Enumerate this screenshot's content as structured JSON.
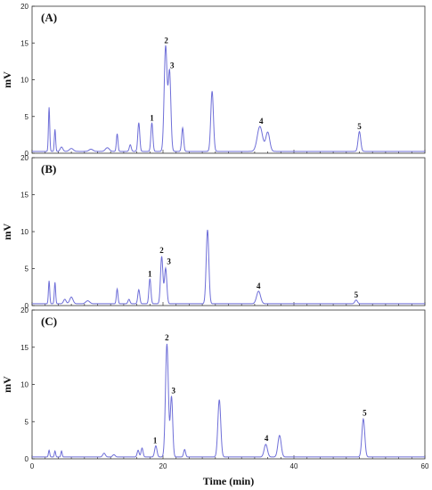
{
  "chart_data": [
    {
      "type": "line",
      "panel_label": "(A)",
      "ylabel": "mV",
      "xlim": [
        0,
        60
      ],
      "ylim": [
        0,
        20
      ],
      "yticks": [
        0,
        5,
        10,
        15,
        20
      ],
      "line_color": "#6f6fd8",
      "peaks": [
        {
          "t": 2.6,
          "h": 6.0,
          "w": 0.1
        },
        {
          "t": 3.5,
          "h": 3.0,
          "w": 0.1
        },
        {
          "t": 4.5,
          "h": 0.6,
          "w": 0.2
        },
        {
          "t": 6.0,
          "h": 0.4,
          "w": 0.3
        },
        {
          "t": 9.0,
          "h": 0.3,
          "w": 0.3
        },
        {
          "t": 11.5,
          "h": 0.5,
          "w": 0.3
        },
        {
          "t": 13.0,
          "h": 2.4,
          "w": 0.12
        },
        {
          "t": 15.0,
          "h": 0.9,
          "w": 0.15
        },
        {
          "t": 16.3,
          "h": 3.9,
          "w": 0.15
        },
        {
          "t": 18.3,
          "h": 3.9,
          "w": 0.15
        },
        {
          "t": 20.4,
          "h": 14.3,
          "w": 0.22
        },
        {
          "t": 21.0,
          "h": 10.8,
          "w": 0.2
        },
        {
          "t": 23.0,
          "h": 3.2,
          "w": 0.15
        },
        {
          "t": 27.5,
          "h": 8.2,
          "w": 0.2
        },
        {
          "t": 34.8,
          "h": 3.4,
          "w": 0.4
        },
        {
          "t": 36.0,
          "h": 2.6,
          "w": 0.3
        },
        {
          "t": 50.0,
          "h": 2.7,
          "w": 0.2
        }
      ],
      "peak_labels": [
        {
          "label": "1",
          "t": 18.3,
          "y": 4.4
        },
        {
          "label": "2",
          "t": 20.5,
          "y": 15.0
        },
        {
          "label": "3",
          "t": 21.4,
          "y": 11.6
        },
        {
          "label": "4",
          "t": 35.0,
          "y": 4.0
        },
        {
          "label": "5",
          "t": 50.0,
          "y": 3.3
        }
      ]
    },
    {
      "type": "line",
      "panel_label": "(B)",
      "ylabel": "mV",
      "xlim": [
        0,
        60
      ],
      "ylim": [
        0,
        20
      ],
      "yticks": [
        0,
        5,
        10,
        15,
        20
      ],
      "line_color": "#6f6fd8",
      "peaks": [
        {
          "t": 2.6,
          "h": 3.1,
          "w": 0.1
        },
        {
          "t": 3.5,
          "h": 2.9,
          "w": 0.1
        },
        {
          "t": 5.0,
          "h": 0.6,
          "w": 0.2
        },
        {
          "t": 6.0,
          "h": 0.9,
          "w": 0.25
        },
        {
          "t": 8.5,
          "h": 0.4,
          "w": 0.3
        },
        {
          "t": 13.0,
          "h": 2.0,
          "w": 0.12
        },
        {
          "t": 14.8,
          "h": 0.6,
          "w": 0.15
        },
        {
          "t": 16.3,
          "h": 1.9,
          "w": 0.15
        },
        {
          "t": 18.0,
          "h": 3.4,
          "w": 0.15
        },
        {
          "t": 19.8,
          "h": 6.4,
          "w": 0.18
        },
        {
          "t": 20.4,
          "h": 4.8,
          "w": 0.18
        },
        {
          "t": 26.8,
          "h": 10.0,
          "w": 0.2
        },
        {
          "t": 34.6,
          "h": 1.7,
          "w": 0.3
        },
        {
          "t": 49.5,
          "h": 0.5,
          "w": 0.2
        }
      ],
      "peak_labels": [
        {
          "label": "1",
          "t": 18.0,
          "y": 3.9
        },
        {
          "label": "2",
          "t": 19.8,
          "y": 7.1
        },
        {
          "label": "3",
          "t": 20.9,
          "y": 5.6
        },
        {
          "label": "4",
          "t": 34.6,
          "y": 2.3
        },
        {
          "label": "5",
          "t": 49.5,
          "y": 1.1
        }
      ]
    },
    {
      "type": "line",
      "panel_label": "(C)",
      "ylabel": "mV",
      "xlabel": "Time (min)",
      "xlim": [
        0,
        60
      ],
      "ylim": [
        0,
        20
      ],
      "yticks": [
        0,
        5,
        10,
        15,
        20
      ],
      "xticks": [
        0,
        20,
        40,
        60
      ],
      "line_color": "#6f6fd8",
      "peaks": [
        {
          "t": 2.6,
          "h": 0.9,
          "w": 0.1
        },
        {
          "t": 3.5,
          "h": 0.8,
          "w": 0.1
        },
        {
          "t": 4.5,
          "h": 0.8,
          "w": 0.1
        },
        {
          "t": 11.0,
          "h": 0.5,
          "w": 0.2
        },
        {
          "t": 12.5,
          "h": 0.3,
          "w": 0.2
        },
        {
          "t": 16.2,
          "h": 0.9,
          "w": 0.15
        },
        {
          "t": 16.8,
          "h": 1.2,
          "w": 0.15
        },
        {
          "t": 18.9,
          "h": 1.5,
          "w": 0.18
        },
        {
          "t": 20.6,
          "h": 15.2,
          "w": 0.22
        },
        {
          "t": 21.3,
          "h": 8.1,
          "w": 0.18
        },
        {
          "t": 23.3,
          "h": 1.0,
          "w": 0.15
        },
        {
          "t": 28.6,
          "h": 7.7,
          "w": 0.22
        },
        {
          "t": 35.7,
          "h": 1.7,
          "w": 0.25
        },
        {
          "t": 37.8,
          "h": 2.9,
          "w": 0.25
        },
        {
          "t": 50.6,
          "h": 5.1,
          "w": 0.22
        }
      ],
      "peak_labels": [
        {
          "label": "1",
          "t": 18.8,
          "y": 2.1
        },
        {
          "label": "2",
          "t": 20.6,
          "y": 15.9
        },
        {
          "label": "3",
          "t": 21.6,
          "y": 8.8
        },
        {
          "label": "4",
          "t": 35.8,
          "y": 2.4
        },
        {
          "label": "5",
          "t": 50.8,
          "y": 5.8
        }
      ]
    }
  ]
}
